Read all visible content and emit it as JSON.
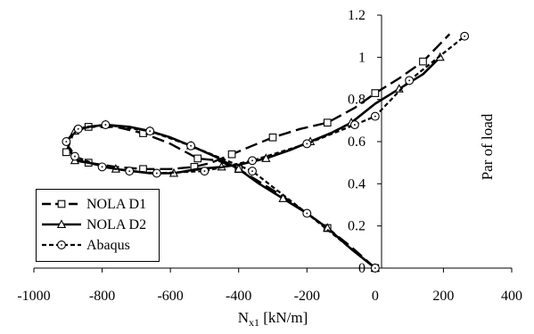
{
  "chart_data": {
    "type": "line",
    "xlabel": "N_x1 [kN/m]",
    "ylabel": "Par of load",
    "xlim": [
      -1000,
      400
    ],
    "ylim": [
      0,
      1.2
    ],
    "x_ticks": [
      -1000,
      -800,
      -600,
      -400,
      -200,
      0,
      200,
      400
    ],
    "y_ticks": [
      0,
      0.2,
      0.4,
      0.6,
      0.8,
      1,
      1.2
    ],
    "grid": false,
    "legend_position": "bottom-left",
    "series": [
      {
        "name": "NOLA D1",
        "line_style": "long-dash",
        "marker": "square",
        "x": [
          0,
          -70,
          -140,
          -270,
          -400,
          -460,
          -520,
          -600,
          -680,
          -760,
          -840,
          -880,
          -905,
          -890,
          -840,
          -760,
          -680,
          -600,
          -530,
          -480,
          -420,
          -360,
          -300,
          -220,
          -140,
          -60,
          0,
          70,
          140,
          218
        ],
        "y": [
          0.0,
          0.1,
          0.19,
          0.34,
          0.47,
          0.51,
          0.52,
          0.59,
          0.64,
          0.67,
          0.67,
          0.66,
          0.55,
          0.52,
          0.5,
          0.48,
          0.47,
          0.47,
          0.48,
          0.5,
          0.54,
          0.58,
          0.62,
          0.66,
          0.69,
          0.76,
          0.83,
          0.9,
          0.98,
          1.11
        ]
      },
      {
        "name": "NOLA D2",
        "line_style": "solid",
        "marker": "triangle",
        "x": [
          0,
          -70,
          -140,
          -200,
          -270,
          -340,
          -400,
          -470,
          -540,
          -600,
          -660,
          -720,
          -790,
          -840,
          -880,
          -905,
          -880,
          -840,
          -760,
          -660,
          -590,
          -520,
          -450,
          -400,
          -320,
          -250,
          -190,
          -130,
          -70,
          0,
          70,
          140,
          190
        ],
        "y": [
          0.0,
          0.09,
          0.19,
          0.26,
          0.33,
          0.4,
          0.47,
          0.53,
          0.58,
          0.62,
          0.65,
          0.67,
          0.68,
          0.67,
          0.65,
          0.6,
          0.51,
          0.5,
          0.47,
          0.45,
          0.45,
          0.47,
          0.48,
          0.49,
          0.52,
          0.56,
          0.6,
          0.64,
          0.69,
          0.78,
          0.85,
          0.92,
          1.0
        ]
      },
      {
        "name": "Abaqus",
        "line_style": "short-dash",
        "marker": "circle",
        "x": [
          0,
          -200,
          -360,
          -540,
          -660,
          -790,
          -870,
          -905,
          -880,
          -800,
          -720,
          -640,
          -500,
          -360,
          -200,
          -60,
          0,
          100,
          262
        ],
        "y": [
          0.0,
          0.26,
          0.46,
          0.58,
          0.65,
          0.68,
          0.66,
          0.6,
          0.53,
          0.48,
          0.46,
          0.45,
          0.46,
          0.51,
          0.59,
          0.68,
          0.72,
          0.89,
          1.1
        ]
      }
    ]
  }
}
